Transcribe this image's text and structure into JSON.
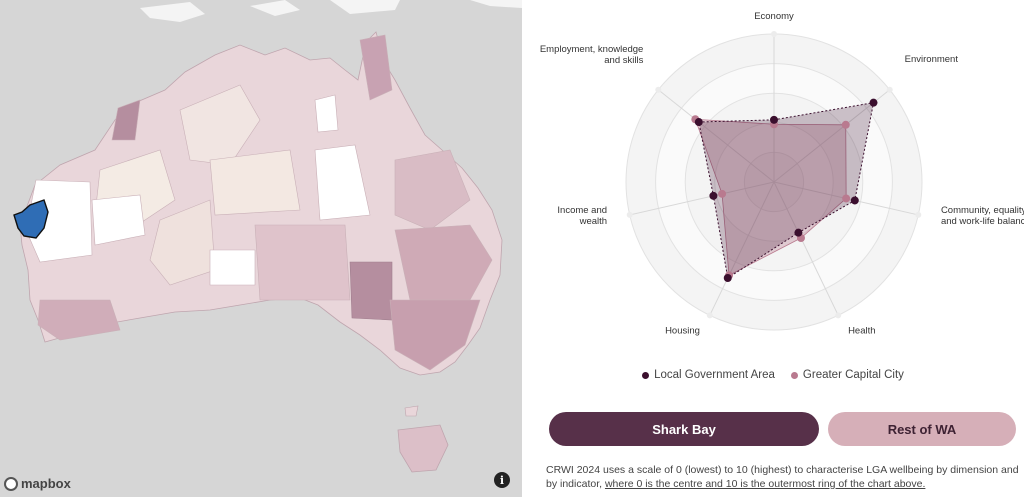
{
  "map": {
    "attribution": "mapbox",
    "info_symbol": "i",
    "highlight_color": "#2f6db5"
  },
  "chart_data": {
    "type": "radar",
    "axes": [
      "Economy",
      "Environment",
      "Community, equality and work-life balance",
      "Health",
      "Housing",
      "Income and wealth",
      "Employment, knowledge and skills"
    ],
    "axis_label_lines": [
      [
        "Economy"
      ],
      [
        "Environment"
      ],
      [
        "Community, equality",
        "and work-life balance"
      ],
      [
        "Health"
      ],
      [
        "Housing"
      ],
      [
        "Income and",
        "wealth"
      ],
      [
        "Employment, knowledge",
        "and skills"
      ]
    ],
    "rlim": [
      0,
      10
    ],
    "grid": true,
    "series": [
      {
        "name": "Local Government Area",
        "color": "#3b0f2e",
        "values": [
          4.2,
          8.6,
          5.6,
          3.8,
          7.2,
          4.2,
          6.5
        ]
      },
      {
        "name": "Greater Capital City",
        "color": "#b97a8f",
        "values": [
          3.9,
          6.2,
          5.0,
          4.2,
          7.0,
          3.6,
          6.8
        ]
      }
    ],
    "legend_position": "bottom"
  },
  "legend": {
    "lga_label": "Local Government Area",
    "gcc_label": "Greater Capital City"
  },
  "buttons": {
    "lga_label": "Shark Bay",
    "lga_color": "#573049",
    "rest_label": "Rest of WA",
    "rest_color": "#d6afb8"
  },
  "footnote": {
    "text": "CRWI 2024 uses a scale of 0 (lowest) to 10 (highest) to characterise LGA wellbeing by dimension and by indicator, ",
    "underlined": "where 0 is the centre and 10 is the outermost ring of the chart above."
  }
}
